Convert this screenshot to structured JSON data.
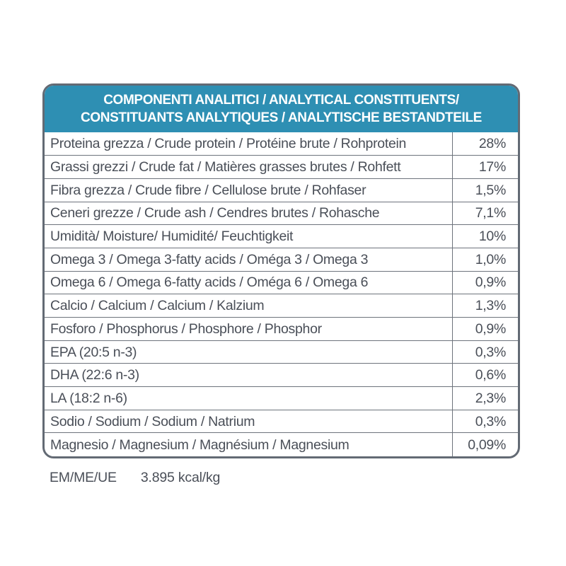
{
  "header": {
    "line1": "COMPONENTI ANALITICI / ANALYTICAL CONSTITUENTS/",
    "line2": "CONSTITUANTS ANALYTIQUES / ANALYTISCHE BESTANDTEILE"
  },
  "rows": [
    {
      "label": "Proteina grezza / Crude protein / Protéine brute / Rohprotein",
      "value": "28%"
    },
    {
      "label": "Grassi grezzi / Crude fat / Matières grasses brutes / Rohfett",
      "value": "17%"
    },
    {
      "label": "Fibra grezza / Crude fibre / Cellulose brute / Rohfaser",
      "value": "1,5%"
    },
    {
      "label": "Ceneri grezze / Crude ash / Cendres brutes / Rohasche",
      "value": "7,1%"
    },
    {
      "label": "Umidità/ Moisture/ Humidité/ Feuchtigkeit",
      "value": "10%"
    },
    {
      "label": "Omega 3 / Omega 3-fatty acids / Oméga 3 / Omega 3",
      "value": "1,0%"
    },
    {
      "label": "Omega 6 / Omega 6-fatty acids / Oméga 6 / Omega 6",
      "value": "0,9%"
    },
    {
      "label": "Calcio / Calcium / Calcium / Kalzium",
      "value": "1,3%"
    },
    {
      "label": "Fosforo / Phosphorus / Phosphore / Phosphor",
      "value": "0,9%"
    },
    {
      "label": "EPA (20:5 n-3)",
      "value": "0,3%"
    },
    {
      "label": "DHA (22:6 n-3)",
      "value": "0,6%"
    },
    {
      "label": "LA (18:2 n-6)",
      "value": "2,3%"
    },
    {
      "label": "Sodio / Sodium / Sodium / Natrium",
      "value": "0,3%"
    },
    {
      "label": "Magnesio / Magnesium / Magnésium / Magnesium",
      "value": "0,09%"
    }
  ],
  "footer": {
    "energy_label": "EM/ME/UE",
    "energy_value": "3.895  kcal/kg"
  },
  "colors": {
    "header_bg": "#2e8fb3",
    "border": "#636a74",
    "text": "#4a4f58"
  }
}
